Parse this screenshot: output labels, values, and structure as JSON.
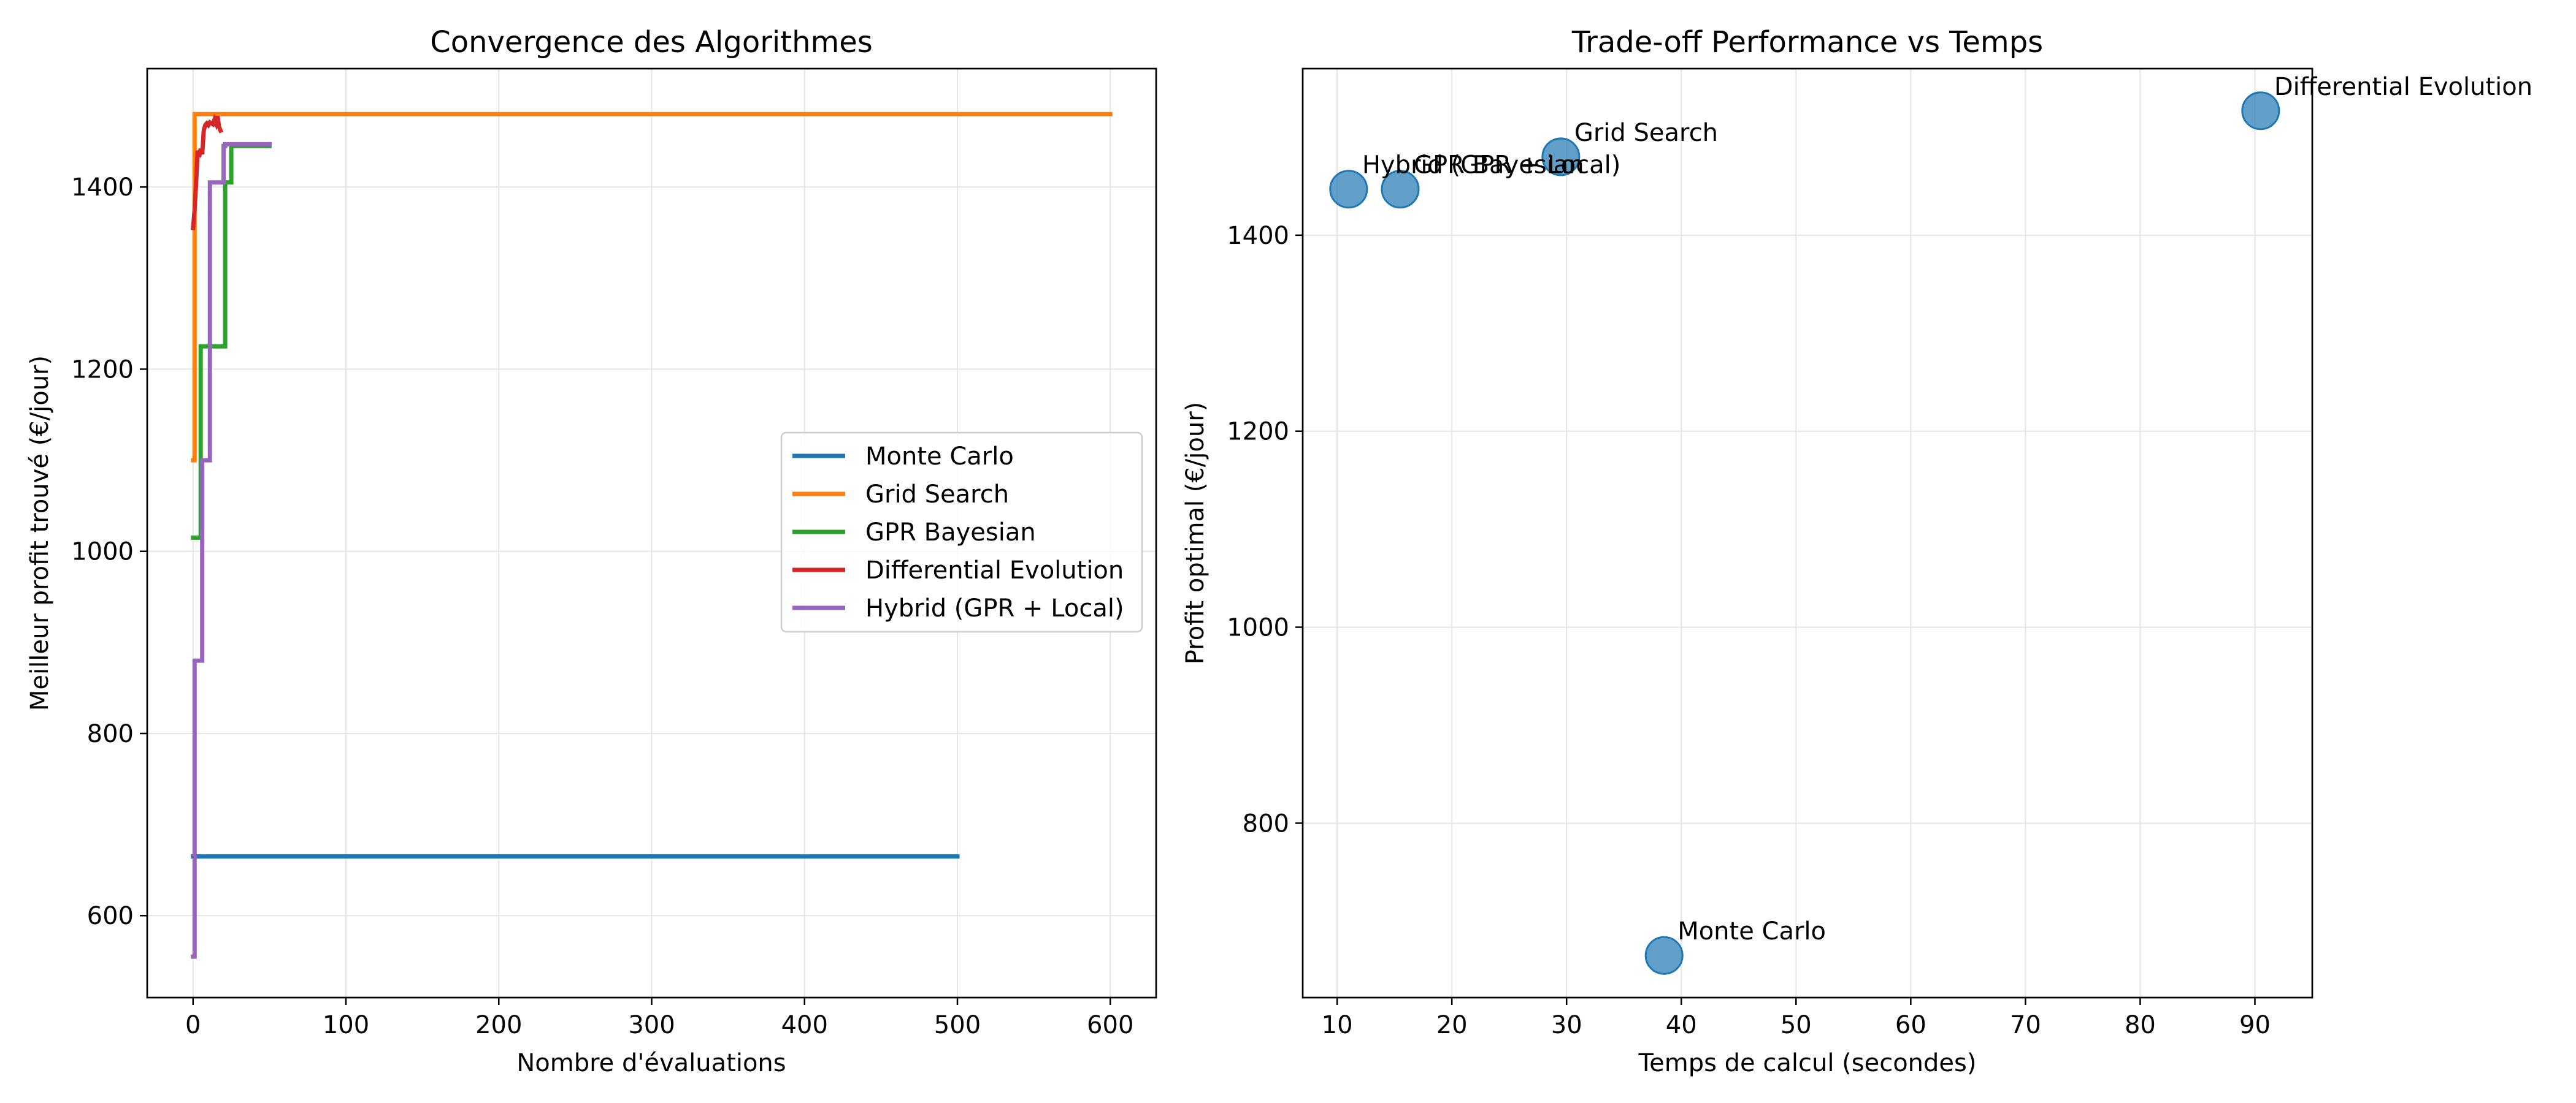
{
  "colors": {
    "monte_carlo": "#1f77b4",
    "grid_search": "#ff7f0e",
    "gpr_bayesian": "#2ca02c",
    "differential_evolution": "#d62728",
    "hybrid": "#9467bd",
    "scatter_fill": "#1f77b4"
  },
  "chart_data": [
    {
      "type": "line",
      "title": "Convergence des Algorithmes",
      "xlabel": "Nombre d'évaluations",
      "ylabel": "Meilleur profit trouvé (€/jour)",
      "xlim": [
        -30,
        630
      ],
      "ylim": [
        510,
        1530
      ],
      "xticks": [
        0,
        100,
        200,
        300,
        400,
        500,
        600
      ],
      "yticks": [
        600,
        800,
        1000,
        1200,
        1400
      ],
      "grid": true,
      "legend_position": "center-right",
      "series": [
        {
          "name": "Monte Carlo",
          "color_key": "monte_carlo",
          "step": true,
          "x": [
            0,
            500
          ],
          "y": [
            665,
            665
          ]
        },
        {
          "name": "Grid Search",
          "color_key": "grid_search",
          "step": true,
          "x": [
            0,
            1,
            600
          ],
          "y": [
            1100,
            1480,
            1480
          ]
        },
        {
          "name": "GPR Bayesian",
          "color_key": "gpr_bayesian",
          "step": true,
          "x": [
            0,
            4,
            5,
            20,
            21,
            25,
            50
          ],
          "y": [
            1015,
            1015,
            1225,
            1225,
            1405,
            1445,
            1447
          ]
        },
        {
          "name": "Differential Evolution",
          "color_key": "differential_evolution",
          "step": false,
          "x": [
            0,
            1,
            2,
            3,
            4,
            5,
            6,
            7,
            8,
            9,
            10,
            11,
            12,
            13,
            14,
            15,
            16,
            17,
            18
          ],
          "y": [
            1355,
            1375,
            1405,
            1440,
            1433,
            1442,
            1436,
            1462,
            1468,
            1470,
            1468,
            1471,
            1470,
            1469,
            1474,
            1470,
            1478,
            1466,
            1462
          ]
        },
        {
          "name": "Hybrid (GPR + Local)",
          "color_key": "hybrid",
          "step": true,
          "x": [
            0,
            1,
            5,
            6,
            10,
            11,
            16,
            20,
            21,
            50
          ],
          "y": [
            555,
            880,
            880,
            1100,
            1100,
            1405,
            1405,
            1445,
            1447,
            1447
          ]
        }
      ]
    },
    {
      "type": "scatter",
      "title": "Trade-off Performance vs Temps",
      "xlabel": "Temps de calcul (secondes)",
      "ylabel": "Profit optimal (€/jour)",
      "xlim": [
        7,
        95
      ],
      "ylim": [
        622,
        1570
      ],
      "xticks": [
        10,
        20,
        30,
        40,
        50,
        60,
        70,
        80,
        90
      ],
      "yticks": [
        800,
        1000,
        1200,
        1400
      ],
      "grid": true,
      "points": [
        {
          "label": "Monte Carlo",
          "x": 38.5,
          "y": 665
        },
        {
          "label": "Grid Search",
          "x": 29.5,
          "y": 1480
        },
        {
          "label": "GPR Bayesian",
          "x": 15.5,
          "y": 1447
        },
        {
          "label": "Differential Evolution",
          "x": 90.5,
          "y": 1527
        },
        {
          "label": "Hybrid (GPR + Local)",
          "x": 11.0,
          "y": 1447
        }
      ]
    }
  ]
}
